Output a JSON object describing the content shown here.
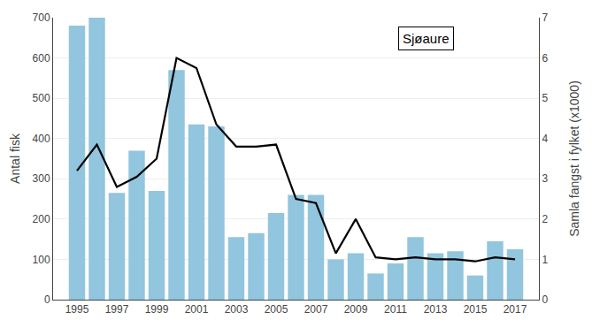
{
  "chart_data": {
    "type": "bar",
    "x": [
      1995,
      1996,
      1997,
      1998,
      1999,
      2000,
      2001,
      2002,
      2003,
      2004,
      2005,
      2006,
      2007,
      2008,
      2009,
      2010,
      2011,
      2012,
      2013,
      2014,
      2015,
      2016,
      2017
    ],
    "series": [
      {
        "type": "bar",
        "axis": "y",
        "color": "#92c5de",
        "values": [
          680,
          700,
          265,
          370,
          270,
          570,
          435,
          430,
          155,
          165,
          215,
          260,
          260,
          100,
          115,
          65,
          90,
          155,
          115,
          120,
          60,
          145,
          125
        ]
      },
      {
        "type": "line",
        "axis": "y2",
        "color": "#000000",
        "values": [
          3.2,
          3.85,
          2.8,
          3.05,
          3.5,
          6.0,
          5.75,
          4.35,
          3.8,
          3.8,
          3.85,
          2.5,
          2.4,
          1.15,
          2.0,
          1.05,
          1.0,
          1.05,
          1.0,
          1.0,
          0.95,
          1.05,
          1.0
        ]
      }
    ],
    "xlim": [
      1993.8,
      2018.2
    ],
    "xticks": [
      1995,
      1997,
      1999,
      2001,
      2003,
      2005,
      2007,
      2009,
      2011,
      2013,
      2015,
      2017
    ],
    "ylim": [
      0,
      700
    ],
    "yticks": [
      0,
      100,
      200,
      300,
      400,
      500,
      600,
      700
    ],
    "y2lim": [
      0,
      7
    ],
    "y2ticks": [
      0,
      1,
      2,
      3,
      4,
      5,
      6,
      7
    ],
    "ylabel": "Antal fisk",
    "y2label": "Samla fangst i fylket (x1000)",
    "annotation": "Sjøaure",
    "grid": true
  }
}
